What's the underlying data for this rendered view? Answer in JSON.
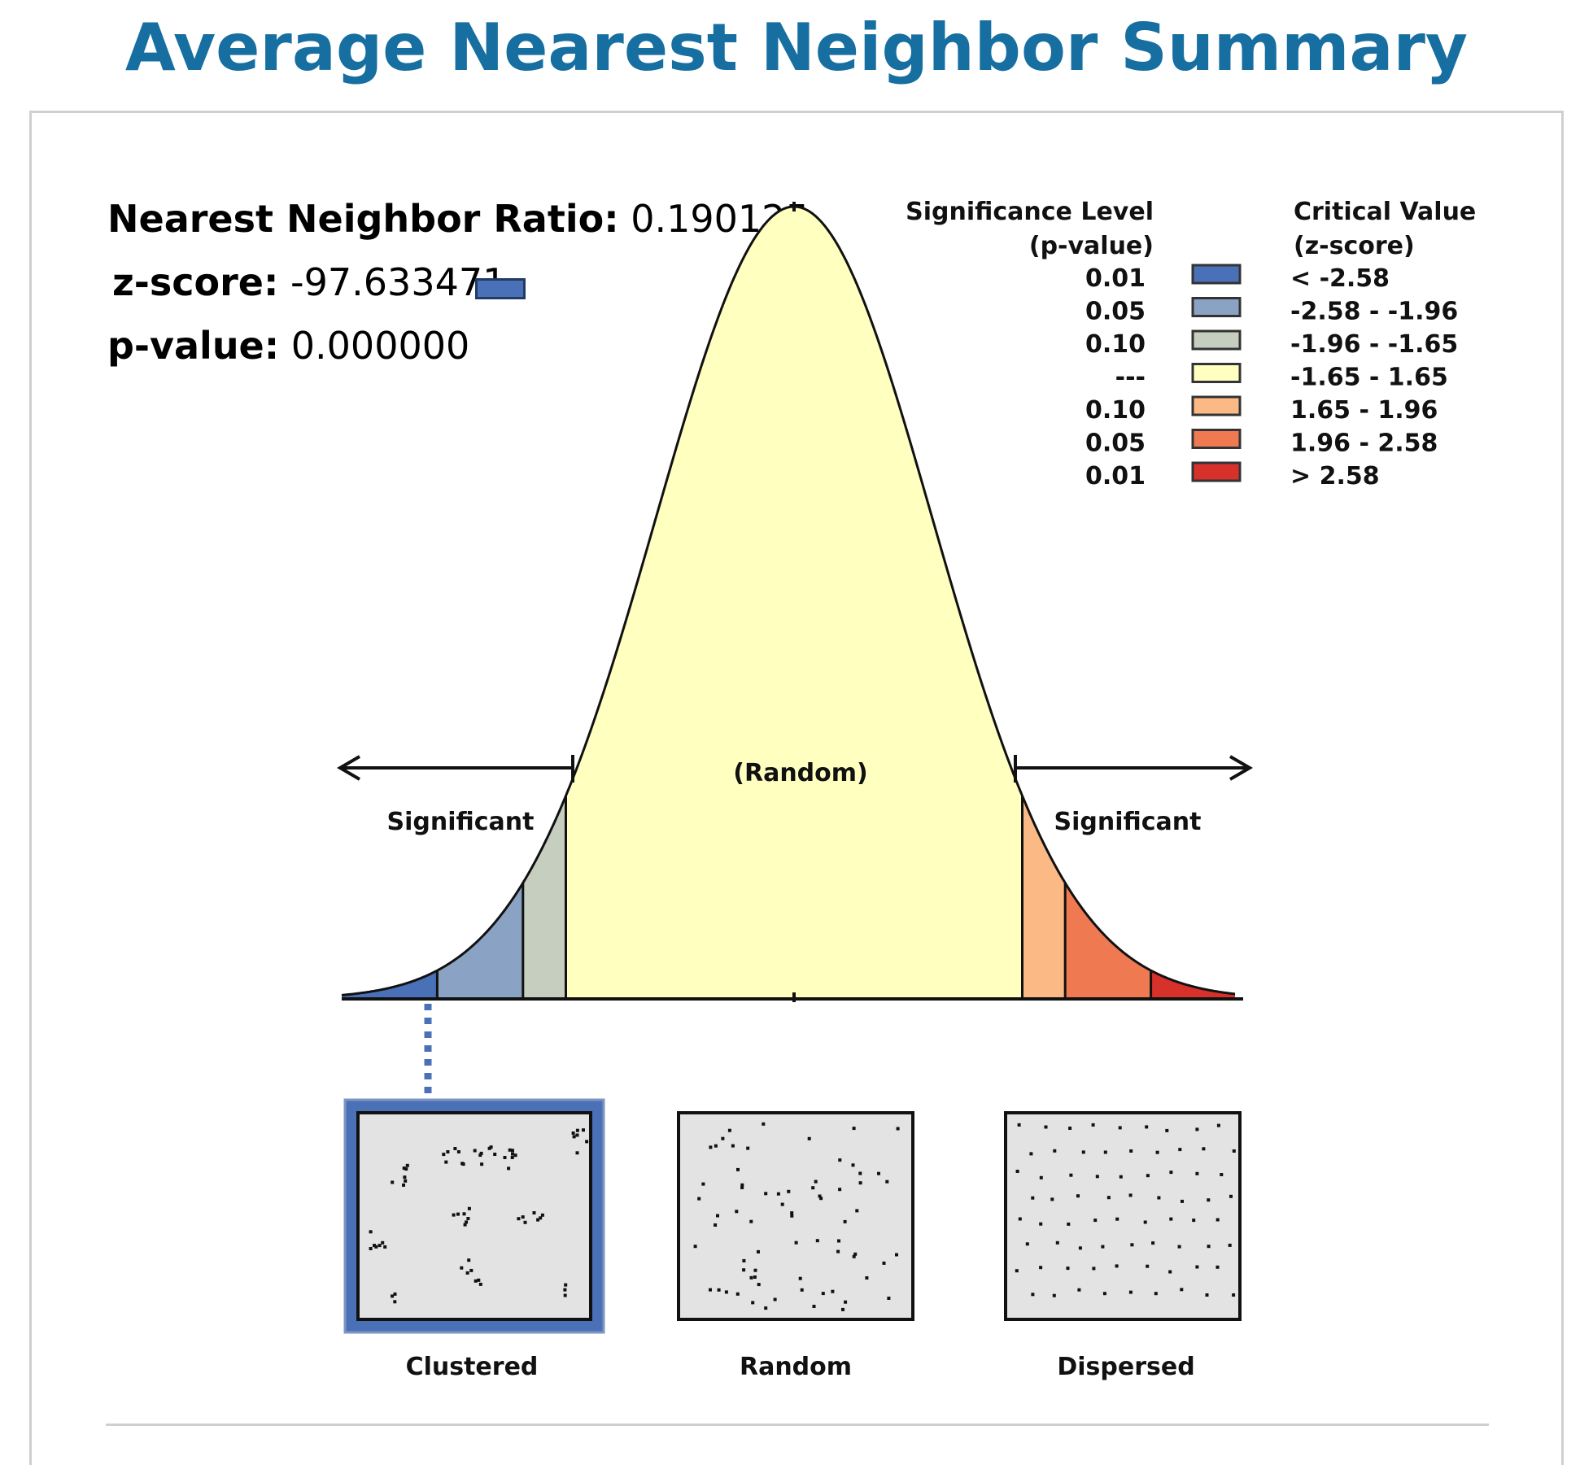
{
  "title": "Average Nearest Neighbor Summary",
  "stats": {
    "ratio_label": "Nearest Neighbor Ratio:",
    "ratio_value": "0.190125",
    "z_label": "z-score:",
    "z_value": "-97.633471",
    "p_label": "p-value:",
    "p_value": "0.000000"
  },
  "result_color": "#4a70b7",
  "legend": {
    "sig_header_line1": "Significance Level",
    "sig_header_line2": "(p-value)",
    "crit_header_line1": "Critical Value",
    "crit_header_line2": "(z-score)",
    "rows": [
      {
        "p": "0.01",
        "z": "< -2.58",
        "color": "#4a70b7"
      },
      {
        "p": "0.05",
        "z": "-2.58 - -1.96",
        "color": "#8aa3c4"
      },
      {
        "p": "0.10",
        "z": "-1.96 - -1.65",
        "color": "#c6cfbf"
      },
      {
        "p": "---",
        "z": "-1.65 - 1.65",
        "color": "#ffffc0"
      },
      {
        "p": "0.10",
        "z": "1.65 - 1.96",
        "color": "#fbb985"
      },
      {
        "p": "0.05",
        "z": "1.96 - 2.58",
        "color": "#ef7a52"
      },
      {
        "p": "0.01",
        "z": "> 2.58",
        "color": "#d7312c"
      }
    ]
  },
  "curve_labels": {
    "random": "(Random)",
    "significant_left": "Significant",
    "significant_right": "Significant"
  },
  "patterns": [
    {
      "label": "Clustered",
      "selected": true
    },
    {
      "label": "Random",
      "selected": false
    },
    {
      "label": "Dispersed",
      "selected": false
    }
  ]
}
